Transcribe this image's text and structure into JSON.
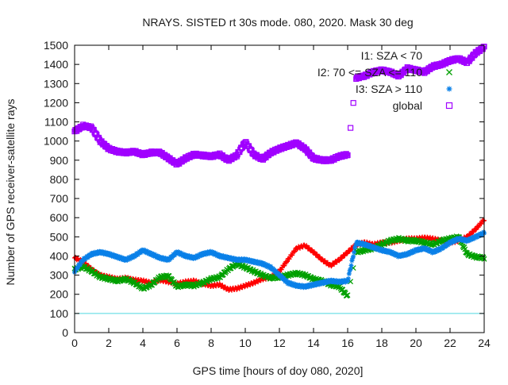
{
  "chart_data": {
    "type": "scatter",
    "title": "NRAYS. SISTED rt 30s mode. 080, 2020. Mask 30 deg",
    "xlabel": "GPS time [hours of doy 080, 2020]",
    "ylabel": "Number of GPS receiver-satellite rays",
    "xlim": [
      0,
      24
    ],
    "ylim": [
      0,
      1500
    ],
    "xticks": [
      0,
      2,
      4,
      6,
      8,
      10,
      12,
      14,
      16,
      18,
      20,
      22,
      24
    ],
    "yticks": [
      0,
      100,
      200,
      300,
      400,
      500,
      600,
      700,
      800,
      900,
      1000,
      1100,
      1200,
      1300,
      1400,
      1500
    ],
    "grid": false,
    "legend_position": "top-right",
    "threshold_line": {
      "y": 100,
      "color": "#4fd8e0"
    },
    "series": [
      {
        "name": "I1: SZA < 70",
        "marker": "plus",
        "color": "#ff0000",
        "legend_visible": false,
        "x": [
          0,
          0.5,
          1,
          1.5,
          2,
          2.5,
          3,
          3.5,
          4,
          4.5,
          5,
          5.5,
          6,
          6.5,
          7,
          7.5,
          8,
          8.5,
          9,
          9.5,
          10,
          10.5,
          11,
          11.5,
          12,
          12.5,
          13,
          13.5,
          14,
          14.5,
          15,
          15.5,
          16,
          16.5,
          17,
          17.5,
          18,
          18.5,
          19,
          19.5,
          20,
          20.5,
          21,
          21.5,
          22,
          22.5,
          23,
          23.5,
          24
        ],
        "y": [
          390,
          370,
          330,
          300,
          290,
          280,
          285,
          275,
          270,
          260,
          275,
          265,
          255,
          265,
          270,
          255,
          245,
          250,
          225,
          230,
          245,
          260,
          280,
          290,
          320,
          380,
          440,
          455,
          420,
          380,
          350,
          380,
          420,
          460,
          470,
          460,
          470,
          470,
          480,
          490,
          490,
          495,
          490,
          480,
          470,
          480,
          500,
          540,
          590
        ]
      },
      {
        "name": "I2: 70 <= SZA <= 110",
        "marker": "x",
        "color": "#00a000",
        "legend_visible": true,
        "x": [
          0,
          0.5,
          1,
          1.5,
          2,
          2.5,
          3,
          3.5,
          4,
          4.5,
          5,
          5.5,
          6,
          6.5,
          7,
          7.5,
          8,
          8.5,
          9,
          9.5,
          10,
          10.5,
          11,
          11.5,
          12,
          12.5,
          13,
          13.5,
          14,
          14.5,
          15,
          15.5,
          16,
          16.5,
          17,
          17.5,
          18,
          18.5,
          19,
          19.5,
          20,
          20.5,
          21,
          21.5,
          22,
          22.5,
          23,
          23.5,
          24
        ],
        "y": [
          330,
          345,
          320,
          290,
          280,
          270,
          280,
          260,
          230,
          250,
          290,
          295,
          240,
          250,
          245,
          260,
          280,
          290,
          330,
          360,
          340,
          320,
          300,
          285,
          290,
          300,
          310,
          300,
          280,
          270,
          250,
          240,
          190,
          420,
          430,
          440,
          460,
          480,
          490,
          480,
          480,
          470,
          460,
          480,
          490,
          500,
          410,
          395,
          390
        ]
      },
      {
        "name": "I3: SZA > 110",
        "marker": "star",
        "color": "#0a80e8",
        "legend_visible": true,
        "x": [
          0,
          0.5,
          1,
          1.5,
          2,
          2.5,
          3,
          3.5,
          4,
          4.5,
          5,
          5.5,
          6,
          6.5,
          7,
          7.5,
          8,
          8.5,
          9,
          9.5,
          10,
          10.5,
          11,
          11.5,
          12,
          12.5,
          13,
          13.5,
          14,
          14.5,
          15,
          15.5,
          16,
          16.5,
          17,
          17.5,
          18,
          18.5,
          19,
          19.5,
          20,
          20.5,
          21,
          21.5,
          22,
          22.5,
          23,
          23.5,
          24
        ],
        "y": [
          320,
          380,
          410,
          420,
          410,
          395,
          380,
          400,
          430,
          410,
          390,
          380,
          420,
          400,
          390,
          410,
          420,
          400,
          390,
          380,
          380,
          370,
          360,
          340,
          300,
          260,
          245,
          240,
          250,
          260,
          270,
          265,
          270,
          470,
          460,
          445,
          430,
          420,
          400,
          410,
          430,
          440,
          420,
          440,
          470,
          490,
          480,
          500,
          520
        ]
      },
      {
        "name": "global",
        "marker": "square",
        "color": "#a000ff",
        "legend_visible": true,
        "x": [
          0,
          0.5,
          1,
          1.5,
          2,
          2.5,
          3,
          3.5,
          4,
          4.5,
          5,
          5.5,
          6,
          6.5,
          7,
          7.5,
          8,
          8.5,
          9,
          9.5,
          10,
          10.5,
          11,
          11.5,
          12,
          12.5,
          13,
          13.5,
          14,
          14.5,
          15,
          15.5,
          16,
          16.5,
          17,
          17.5,
          18,
          18.5,
          19,
          19.5,
          20,
          20.5,
          21,
          21.5,
          22,
          22.5,
          23,
          23.5,
          24
        ],
        "y": [
          1050,
          1080,
          1070,
          1000,
          960,
          945,
          940,
          945,
          930,
          940,
          940,
          910,
          880,
          910,
          930,
          925,
          920,
          930,
          900,
          925,
          995,
          930,
          905,
          940,
          960,
          975,
          990,
          960,
          910,
          900,
          900,
          920,
          930,
          1330,
          1340,
          1360,
          1370,
          1360,
          1340,
          1380,
          1370,
          1360,
          1390,
          1400,
          1420,
          1430,
          1410,
          1460,
          1490
        ]
      }
    ]
  }
}
